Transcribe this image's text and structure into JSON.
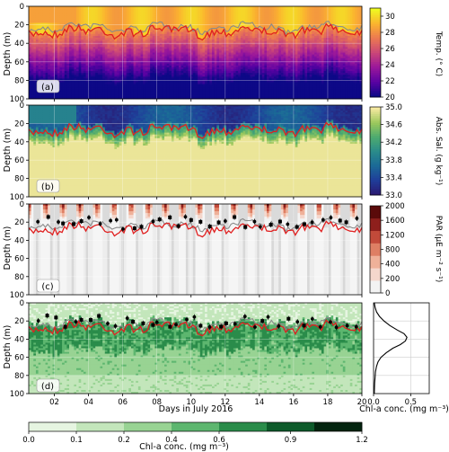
{
  "chart_data": [
    {
      "type": "heatmap",
      "panel_label": "(a)",
      "ylabel": "Depth (m)",
      "yticks": [
        "0",
        "20",
        "40",
        "60",
        "80",
        "100"
      ],
      "ylim": [
        0,
        100
      ],
      "xlim": [
        0.5,
        20
      ],
      "colorbar": {
        "label": "Temp. (° C)",
        "ticks": [
          "20",
          "22",
          "24",
          "26",
          "28",
          "30"
        ],
        "range": [
          20,
          31
        ],
        "colormap": "plasma"
      },
      "grid": true,
      "lines": [
        {
          "color": "#e02020",
          "mean_depth": 27
        },
        {
          "color": "#8a8a8a",
          "mean_depth": 23
        }
      ]
    },
    {
      "type": "heatmap",
      "panel_label": "(b)",
      "ylabel": "Depth (m)",
      "yticks": [
        "0",
        "20",
        "40",
        "60",
        "80",
        "100"
      ],
      "ylim": [
        0,
        100
      ],
      "colorbar": {
        "label": "Abs. Sal. (g kg⁻¹)",
        "ticks": [
          "33.0",
          "33.4",
          "33.8",
          "34.2",
          "34.6",
          "35.0"
        ],
        "range": [
          33.0,
          35.0
        ],
        "colormap": "haline"
      },
      "grid": true
    },
    {
      "type": "heatmap",
      "panel_label": "(c)",
      "ylabel": "Depth (m)",
      "yticks": [
        "0",
        "20",
        "40",
        "60",
        "80",
        "100"
      ],
      "ylim": [
        0,
        100
      ],
      "colorbar": {
        "label": "PAR (µE m⁻² s⁻¹)",
        "ticks": [
          "0",
          "200",
          "400",
          "800",
          "1200",
          "1600",
          "2000"
        ],
        "range": [
          0,
          2000
        ],
        "colormap": "reds-discrete"
      },
      "grid": true
    },
    {
      "type": "heatmap",
      "panel_label": "(d)",
      "ylabel": "Depth (m)",
      "xlabel": "Days in July 2016",
      "xticks": [
        "02",
        "04",
        "06",
        "08",
        "10",
        "12",
        "14",
        "16",
        "18",
        "20"
      ],
      "yticks": [
        "0",
        "20",
        "40",
        "60",
        "80",
        "100"
      ],
      "ylim": [
        0,
        100
      ],
      "grid": true
    },
    {
      "type": "line",
      "xlabel": "Chl-a conc. (mg m⁻³)",
      "xticks": [
        "0.0",
        "0.5"
      ],
      "xlim": [
        0,
        0.75
      ],
      "ylim": [
        0,
        100
      ],
      "x": [
        0.01,
        0.02,
        0.04,
        0.08,
        0.14,
        0.22,
        0.32,
        0.41,
        0.45,
        0.43,
        0.36,
        0.26,
        0.17,
        0.1,
        0.06,
        0.04,
        0.025,
        0.02,
        0.015,
        0.012,
        0.01
      ],
      "y": [
        0,
        5,
        10,
        15,
        20,
        25,
        30,
        34,
        38,
        42,
        46,
        50,
        55,
        60,
        65,
        70,
        76,
        82,
        88,
        94,
        100
      ]
    }
  ],
  "chl_colorbar": {
    "label": "Chl-a conc. (mg m⁻³)",
    "ticks": [
      "0.0",
      "0.1",
      "0.2",
      "0.4",
      "0.6",
      "0.9",
      "1.2"
    ],
    "colors": [
      "#e6f5e1",
      "#c3e6bb",
      "#98d393",
      "#5db66f",
      "#2a8c4a",
      "#0d5a2a",
      "#03240f"
    ]
  },
  "colors": {
    "mld_red": "#e02020",
    "mld_gray": "#8a8a8a",
    "night_shade": "#d8d8d8"
  }
}
